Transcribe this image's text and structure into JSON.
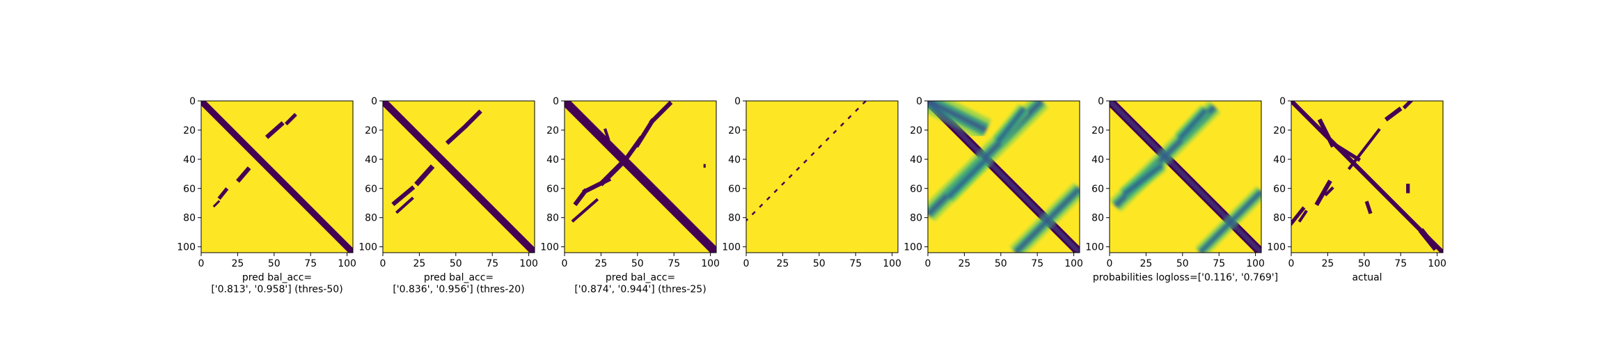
{
  "chart_data": {
    "type": "heatmap",
    "colors": {
      "class_0": "#440154",
      "class_1": "#fde725",
      "colormap": "viridis",
      "axes": "#000000",
      "background": "#ffffff"
    },
    "shared": {
      "matrix_size": 104,
      "xlim": [
        0,
        104
      ],
      "ylim": [
        104,
        0
      ],
      "xticks": [
        "0",
        "25",
        "50",
        "75",
        "100"
      ],
      "yticks": [
        "0",
        "20",
        "40",
        "60",
        "80",
        "100"
      ],
      "grid": false,
      "legend": "none"
    },
    "panels": [
      {
        "kind": "binary",
        "xlabel_lines": [
          "pred bal_acc=",
          "['0.813', '0.958'] (thres-50)"
        ],
        "features": [
          {
            "type": "diagonal",
            "from": [
              0,
              0
            ],
            "to": [
              104,
              104
            ],
            "width": 4.5
          },
          {
            "type": "segment",
            "from": [
              64,
              10
            ],
            "to": [
              59,
              15
            ],
            "width": 2.5
          },
          {
            "type": "segment",
            "from": [
              55,
              16
            ],
            "to": [
              46,
              24
            ],
            "width": 3
          },
          {
            "type": "segment",
            "from": [
              32,
              47
            ],
            "to": [
              26,
              54
            ],
            "width": 3
          },
          {
            "type": "segment",
            "from": [
              17,
              61
            ],
            "to": [
              13,
              66
            ],
            "width": 2.5
          },
          {
            "type": "segment",
            "from": [
              12,
              69
            ],
            "to": [
              9,
              72
            ],
            "width": 1.5
          }
        ]
      },
      {
        "kind": "binary",
        "xlabel_lines": [
          "pred bal_acc=",
          "['0.836', '0.956'] (thres-20)"
        ],
        "features": [
          {
            "type": "diagonal",
            "from": [
              0,
              0
            ],
            "to": [
              104,
              104
            ],
            "width": 5
          },
          {
            "type": "segment",
            "from": [
              66,
              8
            ],
            "to": [
              58,
              16
            ],
            "width": 3
          },
          {
            "type": "segment",
            "from": [
              56,
              18
            ],
            "to": [
              45,
              28
            ],
            "width": 3
          },
          {
            "type": "segment",
            "from": [
              33,
              46
            ],
            "to": [
              24,
              56
            ],
            "width": 3.5
          },
          {
            "type": "segment",
            "from": [
              20,
              60
            ],
            "to": [
              8,
              70
            ],
            "width": 3
          },
          {
            "type": "segment",
            "from": [
              20,
              67
            ],
            "to": [
              10,
              76
            ],
            "width": 2
          }
        ]
      },
      {
        "kind": "binary",
        "xlabel_lines": [
          "pred bal_acc=",
          "['0.874', '0.944'] (thres-25)"
        ],
        "features": [
          {
            "type": "diagonal",
            "from": [
              0,
              0
            ],
            "to": [
              104,
              104
            ],
            "width": 6
          },
          {
            "type": "segment",
            "from": [
              72,
              2
            ],
            "to": [
              60,
              14
            ],
            "width": 3
          },
          {
            "type": "segment",
            "from": [
              60,
              14
            ],
            "to": [
              50,
              30
            ],
            "width": 3
          },
          {
            "type": "segment",
            "from": [
              52,
              26
            ],
            "to": [
              42,
              40
            ],
            "width": 3
          },
          {
            "type": "segment",
            "from": [
              40,
              42
            ],
            "to": [
              26,
              56
            ],
            "width": 3.5
          },
          {
            "type": "segment",
            "from": [
              30,
              54
            ],
            "to": [
              14,
              62
            ],
            "width": 3
          },
          {
            "type": "segment",
            "from": [
              14,
              62
            ],
            "to": [
              8,
              70
            ],
            "width": 3
          },
          {
            "type": "segment",
            "from": [
              22,
              68
            ],
            "to": [
              6,
              82
            ],
            "width": 2
          },
          {
            "type": "segment",
            "from": [
              28,
              20
            ],
            "to": [
              30,
              26
            ],
            "width": 2
          },
          {
            "type": "segment",
            "from": [
              96,
              44
            ],
            "to": [
              96,
              45
            ],
            "width": 1.5
          }
        ]
      },
      {
        "kind": "binary",
        "xlabel_lines": [],
        "features": [
          {
            "type": "dashed",
            "from": [
              82,
              0
            ],
            "to": [
              0,
              82
            ],
            "width": 1.2
          }
        ]
      },
      {
        "kind": "probabilities",
        "xlabel_lines": [],
        "features": [
          {
            "type": "diagonal",
            "from": [
              0,
              0
            ],
            "to": [
              104,
              104
            ],
            "width": 6
          },
          {
            "type": "soft-diagonal",
            "from": [
              78,
              0
            ],
            "to": [
              0,
              78
            ],
            "width": 8
          },
          {
            "type": "soft-segment",
            "from": [
              66,
              5
            ],
            "to": [
              48,
              28
            ],
            "width": 6
          },
          {
            "type": "soft-segment",
            "from": [
              40,
              40
            ],
            "to": [
              14,
              66
            ],
            "width": 6
          },
          {
            "type": "soft-segment",
            "from": [
              104,
              60
            ],
            "to": [
              60,
              104
            ],
            "width": 7
          },
          {
            "type": "soft-segment",
            "from": [
              0,
              0
            ],
            "to": [
              40,
              20
            ],
            "width": 10
          }
        ]
      },
      {
        "kind": "probabilities",
        "xlabel_lines": [
          "probabilities logloss=['0.116', '0.769']"
        ],
        "features": [
          {
            "type": "diagonal",
            "from": [
              0,
              0
            ],
            "to": [
              104,
              104
            ],
            "width": 6
          },
          {
            "type": "soft-diagonal",
            "from": [
              72,
              4
            ],
            "to": [
              4,
              72
            ],
            "width": 7
          },
          {
            "type": "soft-segment",
            "from": [
              66,
              6
            ],
            "to": [
              48,
              26
            ],
            "width": 6
          },
          {
            "type": "soft-segment",
            "from": [
              36,
              44
            ],
            "to": [
              10,
              64
            ],
            "width": 6
          },
          {
            "type": "soft-segment",
            "from": [
              104,
              62
            ],
            "to": [
              62,
              104
            ],
            "width": 6
          }
        ]
      },
      {
        "kind": "binary",
        "xlabel_lines": [
          "actual"
        ],
        "features": [
          {
            "type": "diagonal",
            "from": [
              0,
              0
            ],
            "to": [
              104,
              104
            ],
            "width": 3
          },
          {
            "type": "segment",
            "from": [
              20,
              14
            ],
            "to": [
              28,
              30
            ],
            "width": 3
          },
          {
            "type": "segment",
            "from": [
              30,
              30
            ],
            "to": [
              46,
              40
            ],
            "width": 2.5
          },
          {
            "type": "segment",
            "from": [
              60,
              20
            ],
            "to": [
              40,
              46
            ],
            "width": 2
          },
          {
            "type": "segment",
            "from": [
              74,
              6
            ],
            "to": [
              66,
              12
            ],
            "width": 3
          },
          {
            "type": "segment",
            "from": [
              82,
              0
            ],
            "to": [
              78,
              4
            ],
            "width": 2.5
          },
          {
            "type": "segment",
            "from": [
              26,
              56
            ],
            "to": [
              18,
              70
            ],
            "width": 3
          },
          {
            "type": "segment",
            "from": [
              28,
              60
            ],
            "to": [
              24,
              64
            ],
            "width": 2
          },
          {
            "type": "segment",
            "from": [
              8,
              74
            ],
            "to": [
              0,
              84
            ],
            "width": 2.5
          },
          {
            "type": "segment",
            "from": [
              10,
              76
            ],
            "to": [
              6,
              82
            ],
            "width": 2
          },
          {
            "type": "segment",
            "from": [
              52,
              70
            ],
            "to": [
              54,
              76
            ],
            "width": 2.5
          },
          {
            "type": "segment",
            "from": [
              80,
              58
            ],
            "to": [
              80,
              62
            ],
            "width": 2.5
          },
          {
            "type": "segment",
            "from": [
              90,
              90
            ],
            "to": [
              98,
              100
            ],
            "width": 4
          }
        ]
      }
    ]
  }
}
